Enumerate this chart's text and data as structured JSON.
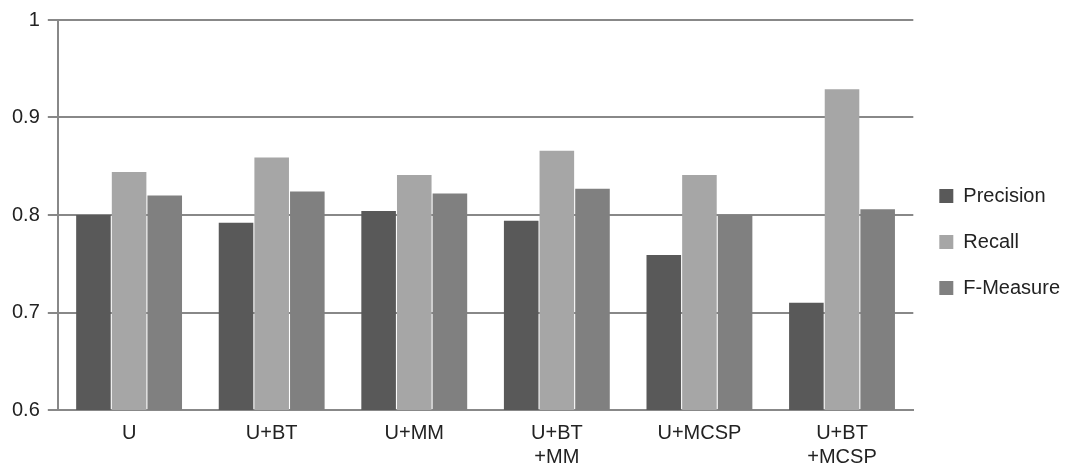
{
  "chart_data": {
    "type": "bar",
    "categories": [
      "U",
      "U+BT",
      "U+MM",
      "U+BT +MM",
      "U+MCSP",
      "U+BT +MCSP"
    ],
    "series": [
      {
        "name": "Precision",
        "color": "#595959",
        "values": [
          0.8,
          0.792,
          0.804,
          0.794,
          0.759,
          0.71
        ]
      },
      {
        "name": "Recall",
        "color": "#a6a6a6",
        "values": [
          0.844,
          0.859,
          0.841,
          0.866,
          0.841,
          0.929
        ]
      },
      {
        "name": "F-Measure",
        "color": "#808080",
        "values": [
          0.82,
          0.824,
          0.822,
          0.827,
          0.8,
          0.806
        ]
      }
    ],
    "ylim": [
      0.6,
      1
    ],
    "yticks": [
      0.6,
      0.7,
      0.8,
      0.9,
      1
    ],
    "grid": "y",
    "legend": "right"
  }
}
